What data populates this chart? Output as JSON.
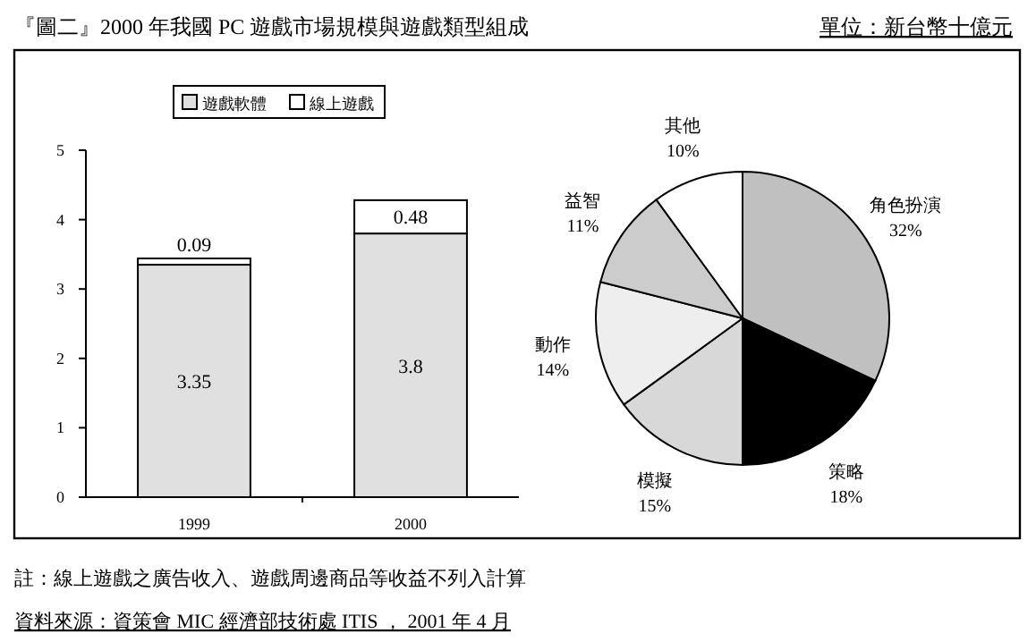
{
  "chart_data": [
    {
      "type": "bar",
      "title": "『圖二』2000 年我國 PC 遊戲市場規模與遊戲類型組成",
      "stacked": true,
      "categories": [
        "1999",
        "2000"
      ],
      "series": [
        {
          "name": "遊戲軟體",
          "color": "#e0e0e0",
          "values": [
            3.35,
            3.8
          ]
        },
        {
          "name": "線上遊戲",
          "color": "#ffffff",
          "values": [
            0.09,
            0.48
          ]
        }
      ],
      "ylim": [
        0,
        5
      ],
      "yticks": [
        0,
        1,
        2,
        3,
        4,
        5
      ],
      "data_labels": true,
      "legend": "top",
      "annotations": [
        "註：線上遊戲之廣告收入、遊戲周邊商品等收益不列入計算",
        "資料來源：資策會 MIC  經濟部技術處 ITIS  ，  2001 年 4 月"
      ]
    },
    {
      "type": "pie",
      "subtitle": "單位：新台幣十億元",
      "categories": [
        "角色扮演",
        "策略",
        "模擬",
        "動作",
        "益智",
        "其他"
      ],
      "values": [
        32,
        18,
        15,
        14,
        11,
        10
      ],
      "colors": [
        "#c0c0c0",
        "#000000",
        "#d8d8d8",
        "#eeeeee",
        "#cccccc",
        "#ffffff"
      ],
      "value_labels": [
        "32%",
        "18%",
        "15%",
        "14%",
        "11%",
        "10%"
      ]
    }
  ]
}
